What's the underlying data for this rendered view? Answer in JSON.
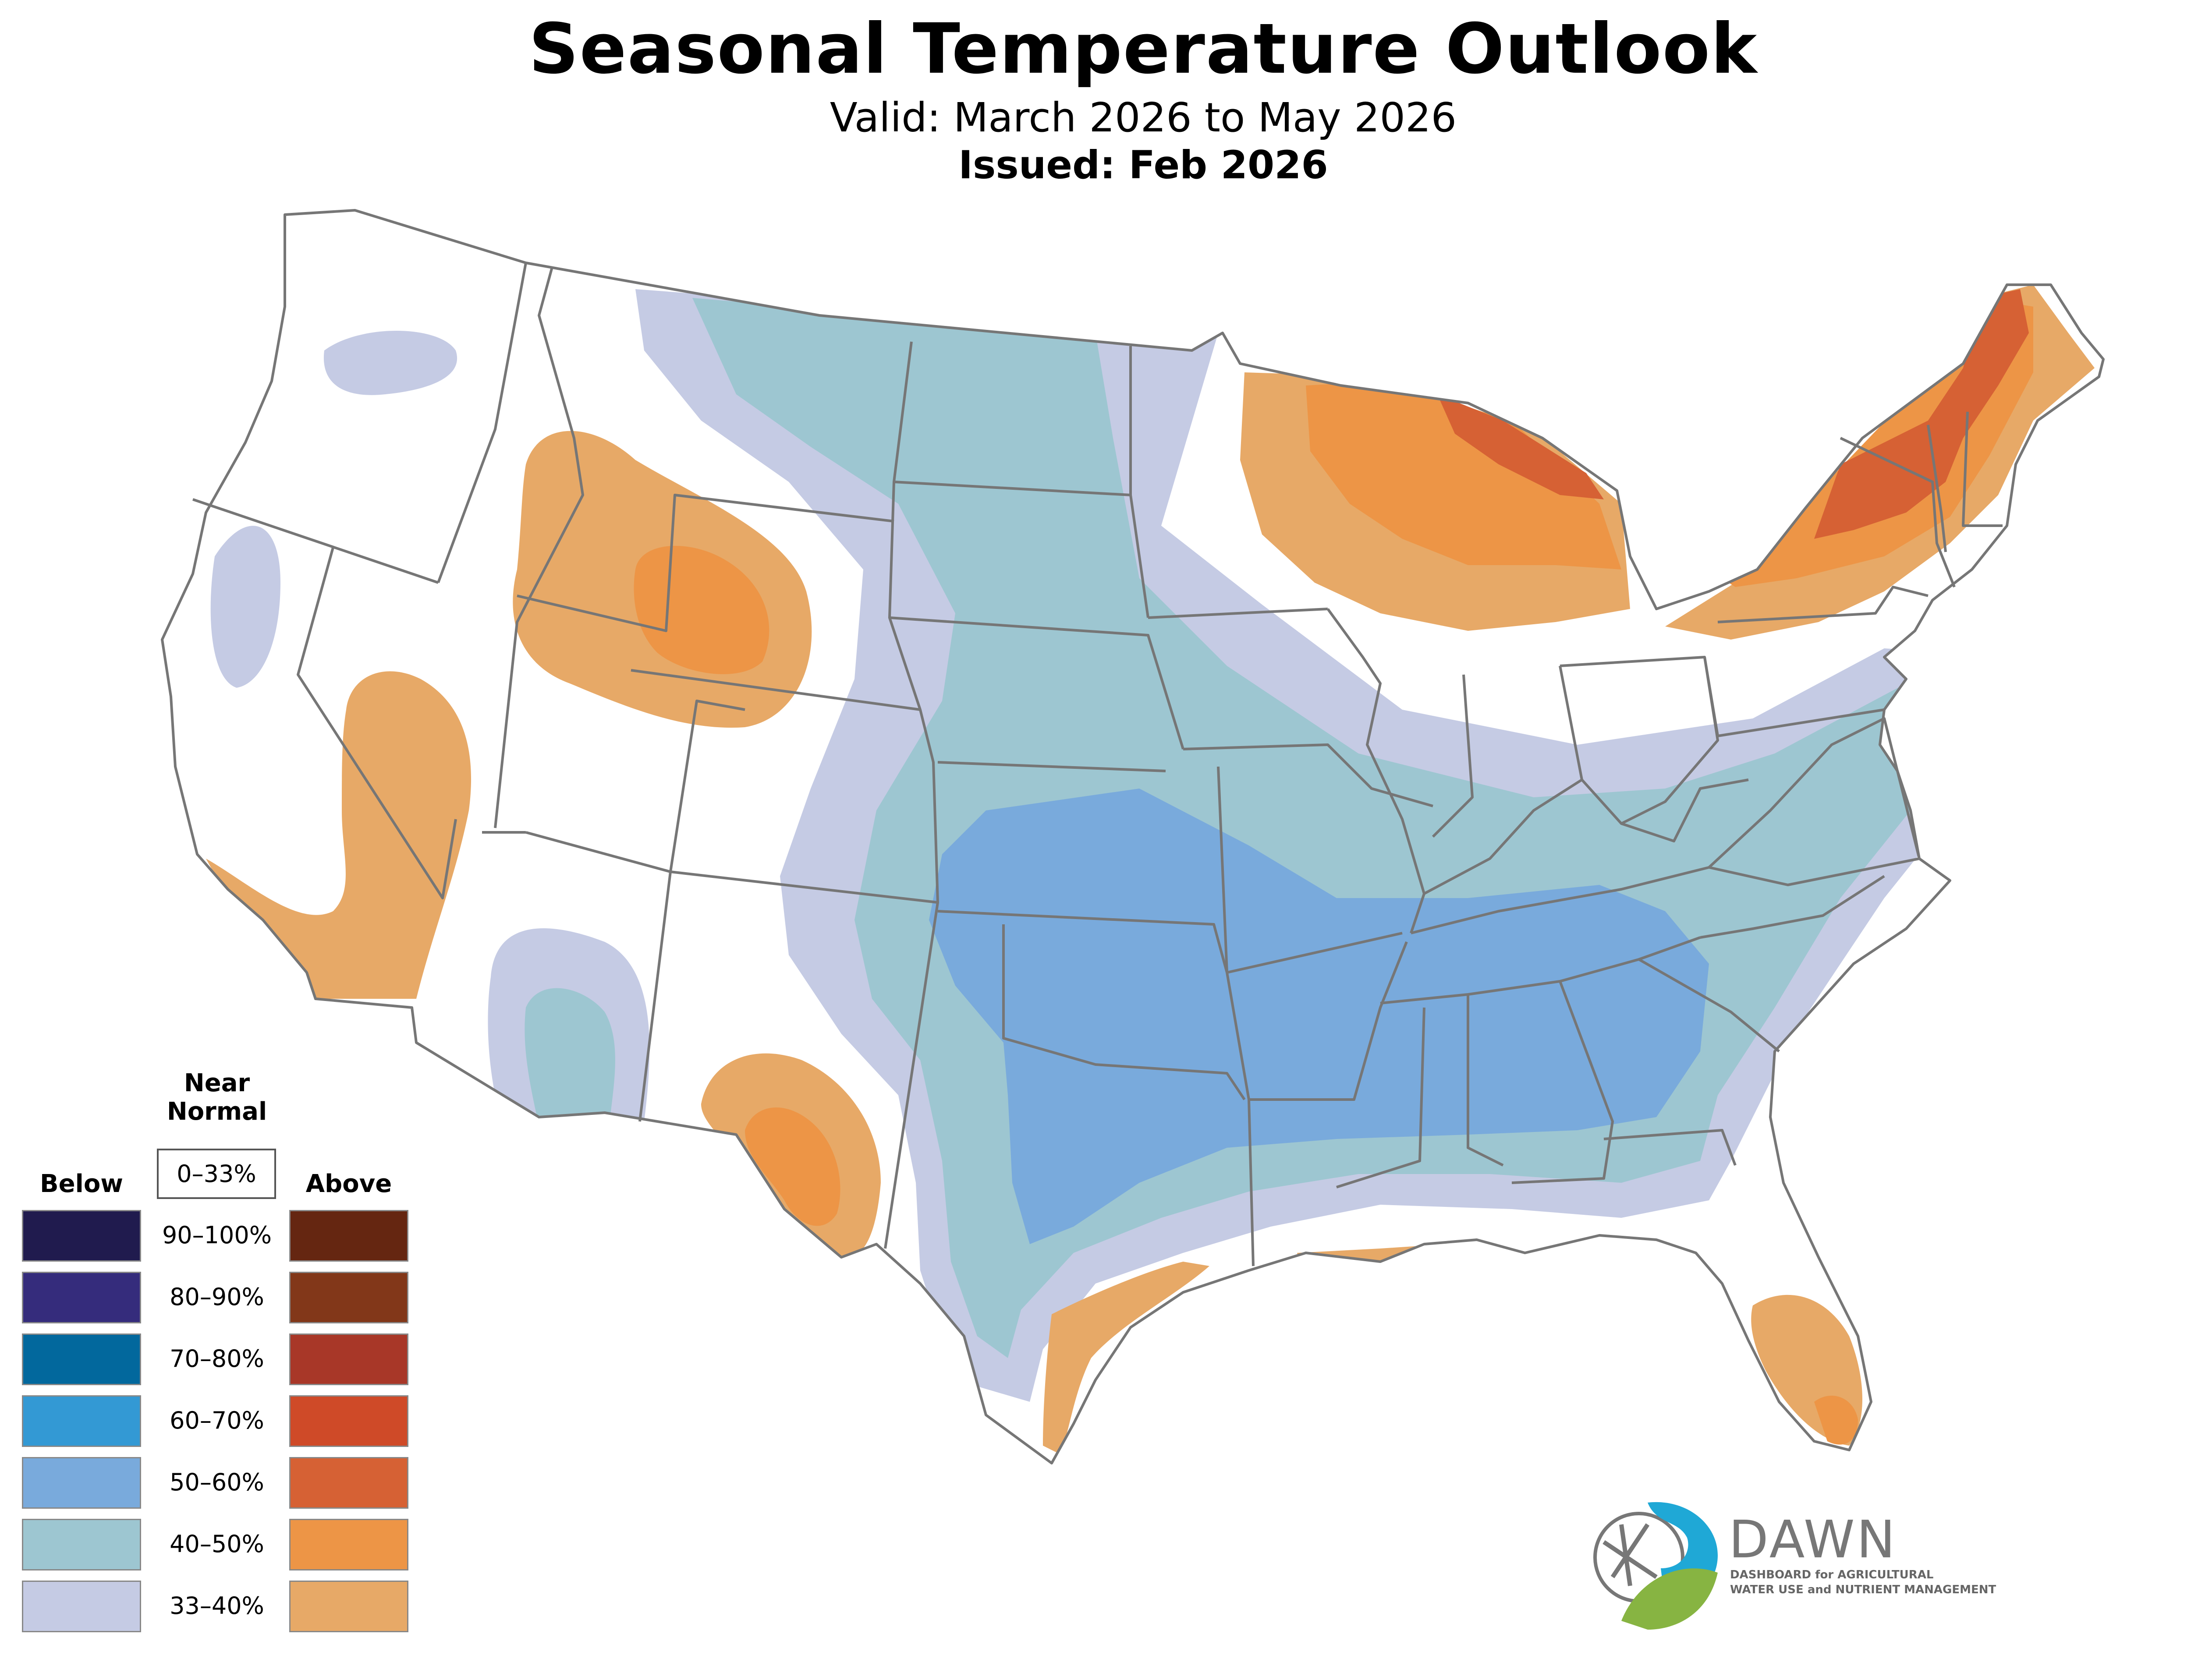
{
  "header": {
    "title": "Seasonal Temperature Outlook",
    "valid": "Valid: March 2026 to May 2026",
    "issued": "Issued: Feb 2026"
  },
  "legend": {
    "near_normal_heading": "Near\nNormal",
    "near_normal_line1": "Near",
    "near_normal_line2": "Normal",
    "near_normal_range": "0–33%",
    "below_heading": "Below",
    "above_heading": "Above",
    "ranges": [
      "90–100%",
      "80–90%",
      "70–80%",
      "60–70%",
      "50–60%",
      "40–50%",
      "33–40%"
    ],
    "below_colors": [
      "#201b4e",
      "#352c7c",
      "#02689d",
      "#3399d4",
      "#79aadc",
      "#9dc6d1",
      "#c5cbe4"
    ],
    "above_colors": [
      "#652611",
      "#823719",
      "#a83728",
      "#cf4a28",
      "#d66134",
      "#ed9546",
      "#e7a967"
    ]
  },
  "map": {
    "outline_color": "#767676",
    "regions": [
      {
        "name": "near-normal-background",
        "category": "Near Normal",
        "color": "#ffffff"
      },
      {
        "name": "below-33-40-central",
        "category": "Below 33–40%",
        "color": "#c5cbe4"
      },
      {
        "name": "below-40-50-central",
        "category": "Below 40–50%",
        "color": "#9dc6d1"
      },
      {
        "name": "below-50-60-south",
        "category": "Below 50–60%",
        "color": "#79aadc"
      },
      {
        "name": "below-33-40-northwest",
        "category": "Below 33–40%",
        "color": "#c5cbe4"
      },
      {
        "name": "below-33-40-california",
        "category": "Below 33–40%",
        "color": "#c5cbe4"
      },
      {
        "name": "below-33-40-arizona",
        "category": "Below 33–40%",
        "color": "#c5cbe4"
      },
      {
        "name": "below-40-50-arizona",
        "category": "Below 40–50%",
        "color": "#9dc6d1"
      },
      {
        "name": "above-33-40-great-lakes",
        "category": "Above 33–40%",
        "color": "#e7a967"
      },
      {
        "name": "above-40-50-great-lakes",
        "category": "Above 40–50%",
        "color": "#ed9546"
      },
      {
        "name": "above-50-60-upper-michigan",
        "category": "Above 50–60%",
        "color": "#d66134"
      },
      {
        "name": "above-33-40-northeast",
        "category": "Above 33–40%",
        "color": "#e7a967"
      },
      {
        "name": "above-40-50-northeast",
        "category": "Above 40–50%",
        "color": "#ed9546"
      },
      {
        "name": "above-50-60-northeast",
        "category": "Above 50–60%",
        "color": "#d66134"
      },
      {
        "name": "above-33-40-rockies",
        "category": "Above 33–40%",
        "color": "#e7a967"
      },
      {
        "name": "above-40-50-wyoming",
        "category": "Above 40–50%",
        "color": "#ed9546"
      },
      {
        "name": "above-33-40-southwest",
        "category": "Above 33–40%",
        "color": "#e7a967"
      },
      {
        "name": "above-33-40-new-mexico",
        "category": "Above 33–40%",
        "color": "#e7a967"
      },
      {
        "name": "above-40-50-texas-west",
        "category": "Above 40–50%",
        "color": "#ed9546"
      },
      {
        "name": "above-33-40-gulf-coast",
        "category": "Above 33–40%",
        "color": "#e7a967"
      },
      {
        "name": "above-33-40-florida",
        "category": "Above 33–40%",
        "color": "#e7a967"
      },
      {
        "name": "above-40-50-florida",
        "category": "Above 40–50%",
        "color": "#ed9546"
      }
    ]
  },
  "logo": {
    "name": "DAWN",
    "line1": "DASHBOARD for AGRICULTURAL",
    "line2": "WATER USE and NUTRIENT MANAGEMENT",
    "blue": "#1fa8d6",
    "green": "#87b442"
  }
}
